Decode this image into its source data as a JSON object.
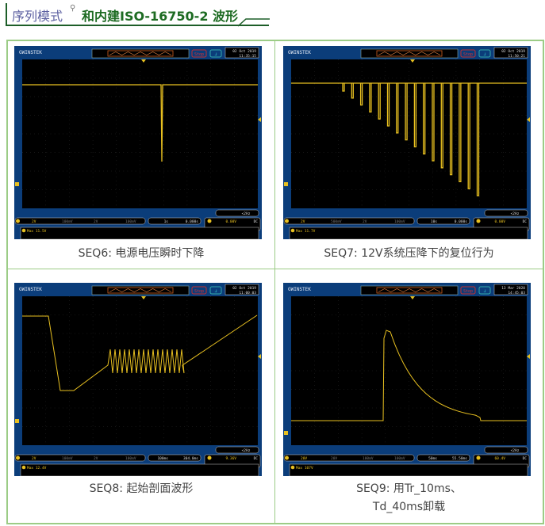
{
  "header": {
    "prefix": "序列模式",
    "title": "和内建ISO-16750-2 波形",
    "search_icon": "magnifier-icon"
  },
  "colors": {
    "accent": "#1d6b22",
    "border": "#9ccc86",
    "scope_blue": "#0b3d7a",
    "trace": "#e8c020"
  },
  "panels": [
    {
      "caption": "SEQ6: 电源电压瞬时下降",
      "brand": "GWINSTEK",
      "status": "Stop",
      "date": "02 Oct 2019",
      "time": "11:35:15",
      "ch1": "2V",
      "ch2": "100mV",
      "ch3": "2V",
      "ch4": "100mV",
      "timebase": "1s",
      "hpos": "0.000s",
      "trig": "0.00V",
      "coupling": "DC",
      "freq": "<2Hz",
      "meas": "Max 11.5V"
    },
    {
      "caption": "SEQ7: 12V系统压降下的复位行为",
      "brand": "GWINSTEK",
      "status": "Stop",
      "date": "02 Oct 2019",
      "time": "11:50:21",
      "ch1": "2V",
      "ch2": "500mV",
      "ch3": "2V",
      "ch4": "100mV",
      "timebase": "10s",
      "hpos": "0.000s",
      "trig": "0.00V",
      "coupling": "DC",
      "freq": "<2Hz",
      "meas": "Max 11.7V"
    },
    {
      "caption": "SEQ8: 起始剖面波形",
      "brand": "GWINSTEK",
      "status": "Stop",
      "date": "02 Oct 2019",
      "time": "11:00:03",
      "ch1": "2V",
      "ch2": "100mV",
      "ch3": "2V",
      "ch4": "100mV",
      "timebase": "100ms",
      "hpos": "304.0ms",
      "trig": "9.36V",
      "coupling": "DC",
      "freq": "<2Hz",
      "meas": "Max 12.4V"
    },
    {
      "caption": "SEQ9: 用Tr_10ms、",
      "caption2": "Td_40ms卸载",
      "brand": "GWINSTEK",
      "status": "Stop",
      "date": "13 Mar 2020",
      "time": "14:45:03",
      "ch1": "20V",
      "ch2": "20V",
      "ch3": "100mV",
      "ch4": "100mV",
      "timebase": "50ms",
      "hpos": "55.50ms",
      "trig": "60.4V",
      "coupling": "DC",
      "freq": "<2Hz",
      "meas": "Max 107V"
    }
  ]
}
